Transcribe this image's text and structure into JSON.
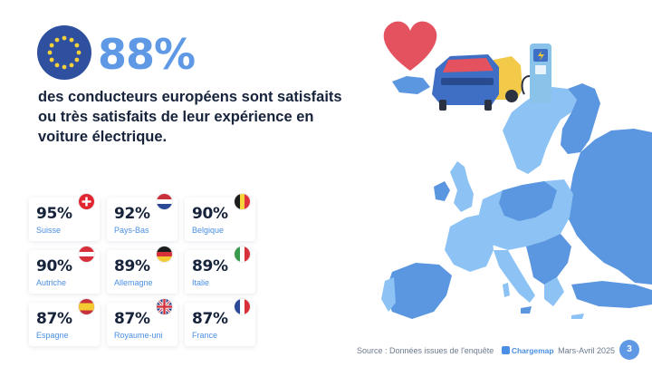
{
  "header": {
    "headline": "88%",
    "subtitle": "des conducteurs européens sont satisfaits ou très satisfaits de leur expérience en voiture électrique."
  },
  "stats": [
    {
      "percent": "95%",
      "country": "Suisse",
      "flag_icon": "switzerland-flag-icon"
    },
    {
      "percent": "92%",
      "country": "Pays-Bas",
      "flag_icon": "netherlands-flag-icon"
    },
    {
      "percent": "90%",
      "country": "Belgique",
      "flag_icon": "belgium-flag-icon"
    },
    {
      "percent": "90%",
      "country": "Autriche",
      "flag_icon": "austria-flag-icon"
    },
    {
      "percent": "89%",
      "country": "Allemagne",
      "flag_icon": "germany-flag-icon"
    },
    {
      "percent": "89%",
      "country": "Italie",
      "flag_icon": "italy-flag-icon"
    },
    {
      "percent": "87%",
      "country": "Espagne",
      "flag_icon": "spain-flag-icon"
    },
    {
      "percent": "87%",
      "country": "Royaume-uni",
      "flag_icon": "uk-flag-icon"
    },
    {
      "percent": "87%",
      "country": "France",
      "flag_icon": "france-flag-icon"
    }
  ],
  "footer": {
    "source": "Source : Données issues de l'enquête",
    "brand": "Chargemap",
    "period": "Mars-Avril 2025",
    "page_number": "3"
  },
  "colors": {
    "accent": "#5f99e6",
    "text_dark": "#16233b",
    "map_light": "#8cc2f4",
    "map_dark": "#5b96e0",
    "heart": "#e4525f"
  },
  "icons": [
    "eu-flag-icon",
    "heart-icon",
    "electric-car-icon",
    "charging-station-icon",
    "europe-map"
  ]
}
